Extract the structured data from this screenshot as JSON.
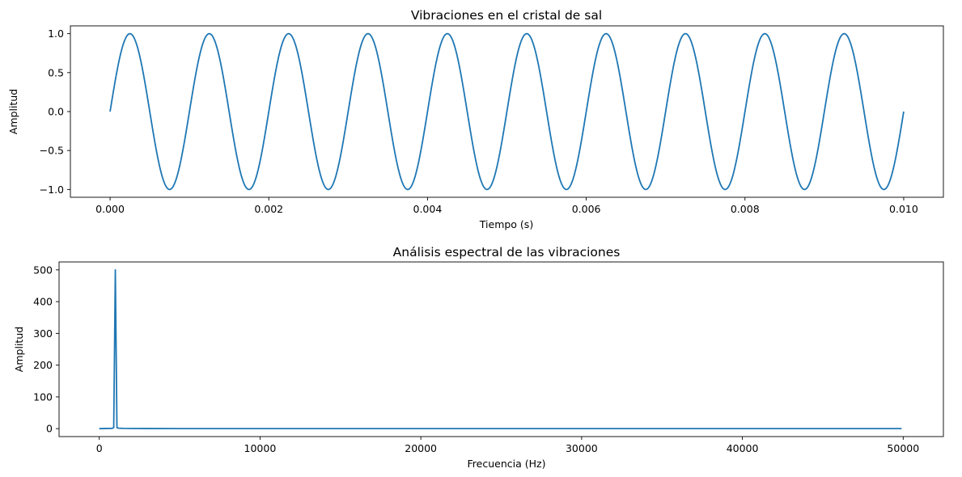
{
  "chart_data": [
    {
      "type": "line",
      "title": "Vibraciones en el cristal de sal",
      "xlabel": "Tiempo (s)",
      "ylabel": "Amplitud",
      "xlim": [
        -0.0005,
        0.0105
      ],
      "ylim": [
        -1.1,
        1.1
      ],
      "xticks": [
        0.0,
        0.002,
        0.004,
        0.006,
        0.008,
        0.01
      ],
      "xtick_labels": [
        "0.000",
        "0.002",
        "0.004",
        "0.006",
        "0.008",
        "0.010"
      ],
      "yticks": [
        -1.0,
        -0.5,
        0.0,
        0.5,
        1.0
      ],
      "ytick_labels": [
        "−1.0",
        "−0.5",
        "0.0",
        "0.5",
        "1.0"
      ],
      "grid": false,
      "color": "#1f77b4",
      "series": [
        {
          "function": "sine",
          "amplitude": 1.0,
          "frequency_hz": 1000,
          "x_start": 0.0,
          "x_end": 0.01
        }
      ]
    },
    {
      "type": "line",
      "title": "Análisis espectral de las vibraciones",
      "xlabel": "Frecuencia (Hz)",
      "ylabel": "Amplitud",
      "xlim": [
        -2500,
        52500
      ],
      "ylim": [
        -25,
        525
      ],
      "xticks": [
        0,
        10000,
        20000,
        30000,
        40000,
        50000
      ],
      "xtick_labels": [
        "0",
        "10000",
        "20000",
        "30000",
        "40000",
        "50000"
      ],
      "yticks": [
        0,
        100,
        200,
        300,
        400,
        500
      ],
      "ytick_labels": [
        "0",
        "100",
        "200",
        "300",
        "400",
        "500"
      ],
      "grid": false,
      "color": "#1f77b4",
      "series": [
        {
          "x": [
            0,
            800,
            900,
            1000,
            1100,
            1200,
            1500,
            2000,
            3000,
            5000,
            10000,
            20000,
            30000,
            40000,
            49900
          ],
          "y": [
            0,
            1,
            3,
            500,
            3,
            1.5,
            0.8,
            0.5,
            0.3,
            0.2,
            0.1,
            0.05,
            0.05,
            0.05,
            0.05
          ]
        }
      ]
    }
  ]
}
